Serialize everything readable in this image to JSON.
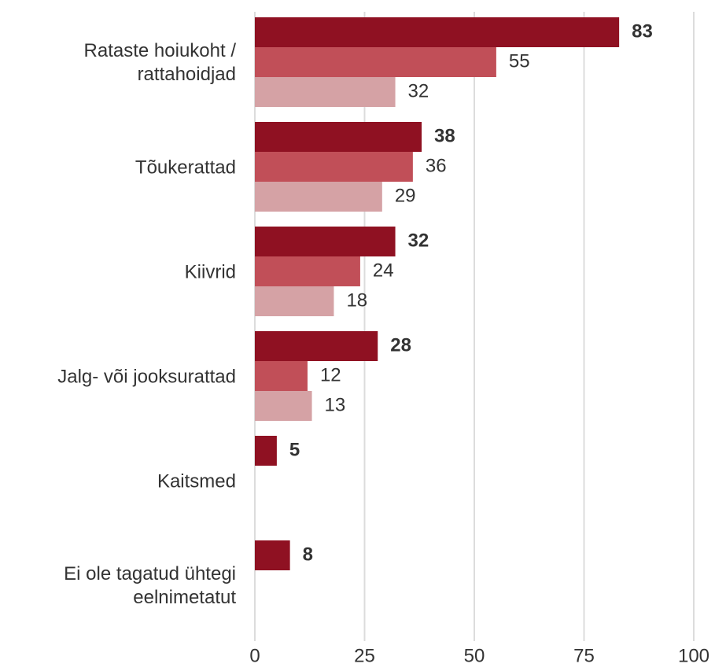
{
  "chart_data": {
    "type": "bar",
    "orientation": "horizontal",
    "categories": [
      "Rataste hoiukoht /\nrattahoidjad",
      "Tõukerattad",
      "Kiivrid",
      "Jalg- või jooksurattad",
      "Kaitsmed",
      "Ei ole tagatud ühtegi\neelnimetatut"
    ],
    "series": [
      {
        "color": "#8f1122",
        "values": [
          83,
          38,
          32,
          28,
          5,
          8
        ]
      },
      {
        "color": "#c14f58",
        "values": [
          55,
          36,
          24,
          12,
          null,
          null
        ]
      },
      {
        "color": "#d5a2a5",
        "values": [
          32,
          29,
          18,
          13,
          null,
          null
        ]
      }
    ],
    "xlim": [
      0,
      100
    ],
    "xticks": [
      0,
      25,
      50,
      75,
      100
    ],
    "grid": true
  }
}
